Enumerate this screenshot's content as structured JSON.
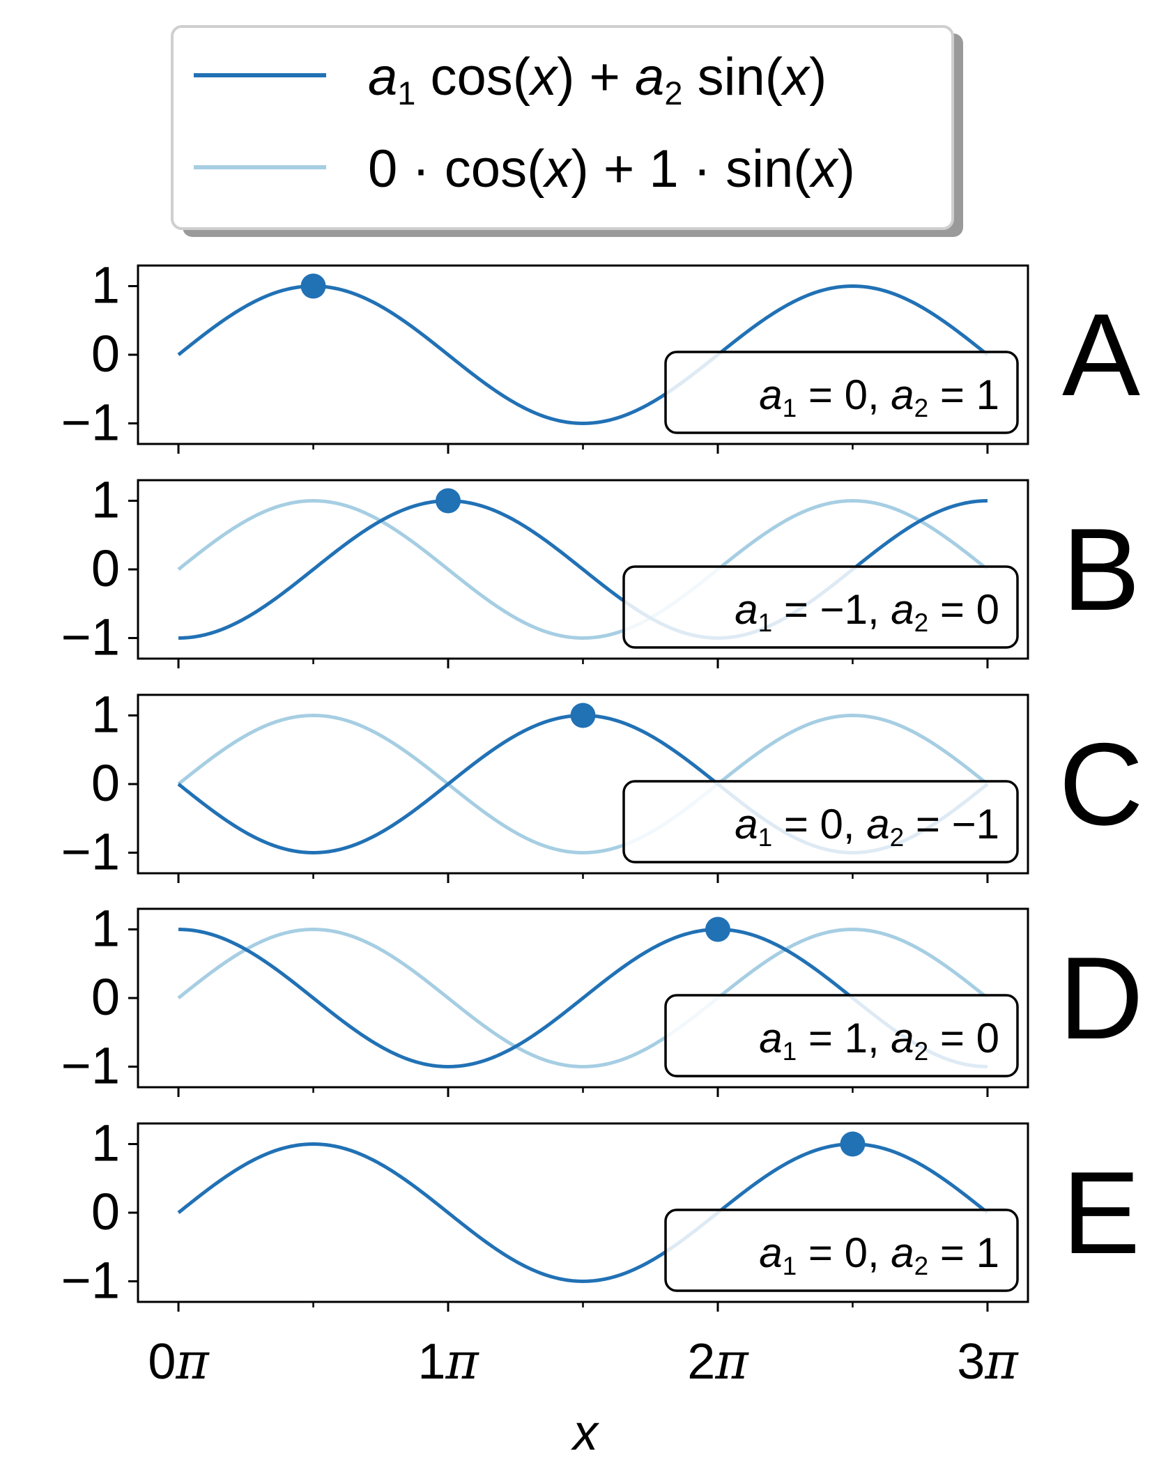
{
  "legend": {
    "entries": [
      {
        "label": "a₁ cos(x) + a₂ sin(x)",
        "parts": [
          "a",
          "1",
          " cos(",
          "x",
          ") + ",
          "a",
          "2",
          " sin(",
          "x",
          ")"
        ],
        "color": "#2171b5"
      },
      {
        "label": "0 · cos(x) + 1 · sin(x)",
        "parts": [
          "0 · cos(",
          "x",
          ") + 1 · sin(",
          "x",
          ")"
        ],
        "color": "#a6cee3"
      }
    ]
  },
  "xlabel": "x",
  "ytick_labels": [
    "1",
    "0",
    "−1"
  ],
  "xtick_labels": [
    {
      "n": "0",
      "sym": "π"
    },
    {
      "n": "1",
      "sym": "π"
    },
    {
      "n": "2",
      "sym": "π"
    },
    {
      "n": "3",
      "sym": "π"
    }
  ],
  "chart_data": {
    "type": "line",
    "x_unit": "π",
    "xlim": [
      -0.15,
      3.15
    ],
    "ylim": [
      -1.3,
      1.3
    ],
    "xticks_major": [
      0,
      1,
      2,
      3
    ],
    "xticks_minor": [
      0.5,
      1.5,
      2.5
    ],
    "yticks": [
      1,
      0,
      -1
    ],
    "reference_series": {
      "name": "0 · cos(x) + 1 · sin(x)",
      "a1": 0,
      "a2": 1,
      "color": "#a6cee3"
    },
    "main_series": {
      "name": "a₁ cos(x) + a₂ sin(x)",
      "color": "#2171b5"
    },
    "panels": [
      {
        "letter": "A",
        "a1": 0,
        "a2": 1,
        "annotation": [
          "a",
          "1",
          " = 0, ",
          "a",
          "2",
          " = 1"
        ],
        "show_reference": false,
        "marker": {
          "x": 0.5,
          "y": 1
        }
      },
      {
        "letter": "B",
        "a1": -1,
        "a2": 0,
        "annotation": [
          "a",
          "1",
          " = −1, ",
          "a",
          "2",
          " = 0"
        ],
        "show_reference": true,
        "marker": {
          "x": 1.0,
          "y": 1
        }
      },
      {
        "letter": "C",
        "a1": 0,
        "a2": -1,
        "annotation": [
          "a",
          "1",
          " = 0, ",
          "a",
          "2",
          " = −1"
        ],
        "show_reference": true,
        "marker": {
          "x": 1.5,
          "y": 1
        }
      },
      {
        "letter": "D",
        "a1": 1,
        "a2": 0,
        "annotation": [
          "a",
          "1",
          " = 1, ",
          "a",
          "2",
          " = 0"
        ],
        "show_reference": true,
        "marker": {
          "x": 2.0,
          "y": 1
        }
      },
      {
        "letter": "E",
        "a1": 0,
        "a2": 1,
        "annotation": [
          "a",
          "1",
          " = 0, ",
          "a",
          "2",
          " = 1"
        ],
        "show_reference": false,
        "marker": {
          "x": 2.5,
          "y": 1
        }
      }
    ]
  }
}
